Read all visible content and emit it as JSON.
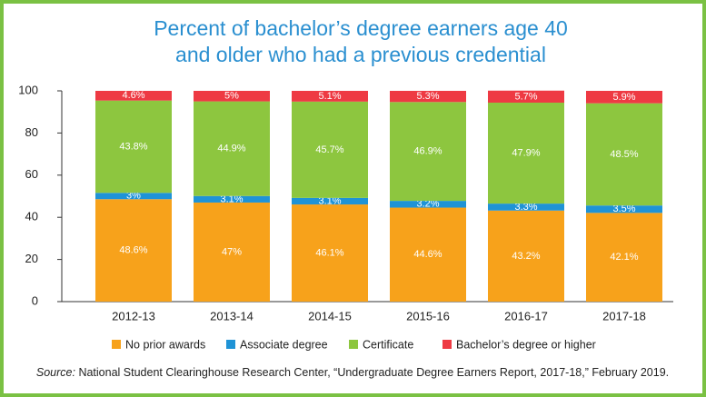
{
  "chart_data": {
    "type": "stacked-bar",
    "title": [
      "Percent of bachelor’s degree earners age 40",
      "and older who had a previous credential"
    ],
    "categories": [
      "2012-13",
      "2013-14",
      "2014-15",
      "2015-16",
      "2016-17",
      "2017-18"
    ],
    "series": [
      {
        "name": "No prior awards",
        "color": "#f7a21b",
        "values": [
          48.6,
          47,
          46.1,
          44.6,
          43.2,
          42.1
        ],
        "value_labels": [
          "48.6%",
          "47%",
          "46.1%",
          "44.6%",
          "43.2%",
          "42.1%"
        ]
      },
      {
        "name": "Associate degree",
        "color": "#1f93d6",
        "values": [
          3,
          3.1,
          3.1,
          3.2,
          3.3,
          3.5
        ],
        "value_labels": [
          "3%",
          "3.1%",
          "3.1%",
          "3.2%",
          "3.3%",
          "3.5%"
        ]
      },
      {
        "name": "Certificate",
        "color": "#8dc63f",
        "values": [
          43.8,
          44.9,
          45.7,
          46.9,
          47.9,
          48.5
        ],
        "value_labels": [
          "43.8%",
          "44.9%",
          "45.7%",
          "46.9%",
          "47.9%",
          "48.5%"
        ]
      },
      {
        "name": "Bachelor’s degree or higher",
        "color": "#ee3a43",
        "values": [
          4.6,
          5,
          5.1,
          5.3,
          5.7,
          5.9
        ],
        "value_labels": [
          "4.6%",
          "5%",
          "5.1%",
          "5.3%",
          "5.7%",
          "5.9%"
        ]
      }
    ],
    "ylim": [
      0,
      100
    ],
    "yticks": [
      0,
      20,
      40,
      60,
      80,
      100
    ],
    "grid": false,
    "legend": "bottom",
    "source": {
      "label": "Source:",
      "text": "National Student Clearinghouse Research Center, “Undergraduate Degree Earners Report, 2017-18,” February 2019."
    }
  }
}
